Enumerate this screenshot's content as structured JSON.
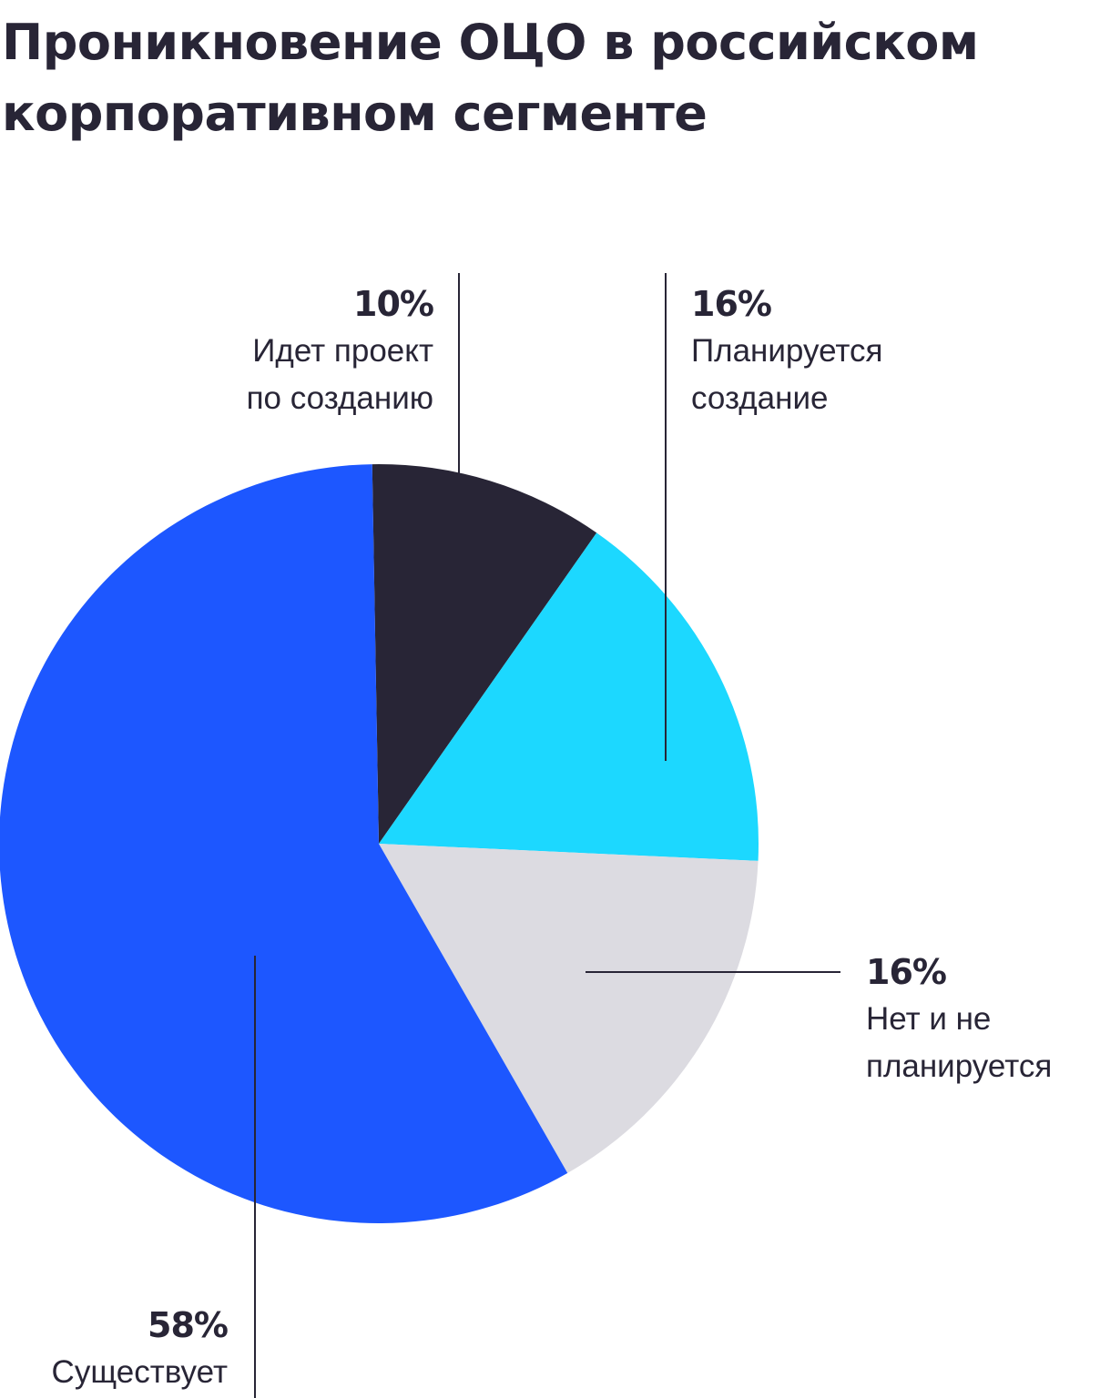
{
  "title": "Проникновение ОЦО в российском корпоративном сегменте",
  "chart_data": {
    "type": "pie",
    "title": "Проникновение ОЦО в российском корпоративном сегменте",
    "slices": [
      {
        "percent_label": "10%",
        "label": "Идет проект\nпо созданию",
        "value": 10,
        "color": "#282536"
      },
      {
        "percent_label": "16%",
        "label": "Планируется\nсоздание",
        "value": 16,
        "color": "#1CD8FF"
      },
      {
        "percent_label": "16%",
        "label": "Нет и не\nпланируется",
        "value": 16,
        "color": "#DCDBE1"
      },
      {
        "percent_label": "58%",
        "label": "Существует",
        "value": 58,
        "color": "#1D57FF"
      }
    ],
    "start_angle_deg": -1
  }
}
